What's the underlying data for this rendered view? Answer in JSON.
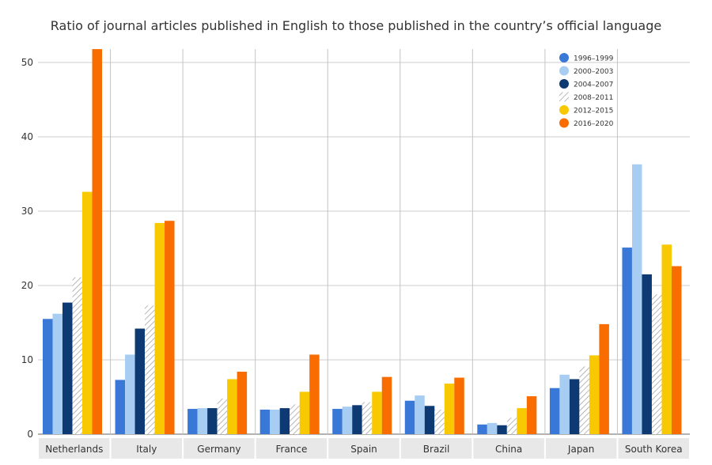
{
  "chart_data": {
    "type": "bar",
    "title": "Ratio of journal articles published in English to those published in the country’s official language",
    "xlabel": "",
    "ylabel": "",
    "ylim": [
      0,
      52
    ],
    "yticks": [
      0,
      10,
      20,
      30,
      40,
      50
    ],
    "grid": true,
    "legend_position": "top-right",
    "categories": [
      "Netherlands",
      "Italy",
      "Germany",
      "France",
      "Spain",
      "Brazil",
      "China",
      "Japan",
      "South Korea"
    ],
    "series": [
      {
        "name": "1996–1999",
        "color": "#3a78d8",
        "pattern": "solid",
        "values": [
          15.5,
          7.3,
          3.4,
          3.3,
          3.4,
          4.5,
          1.3,
          6.2,
          25.1
        ]
      },
      {
        "name": "2000–2003",
        "color": "#a8cdf2",
        "pattern": "solid",
        "values": [
          16.2,
          10.7,
          3.5,
          3.3,
          3.7,
          5.2,
          1.5,
          8.0,
          36.3
        ]
      },
      {
        "name": "2004–2007",
        "color": "#0e3a73",
        "pattern": "solid",
        "values": [
          17.7,
          14.2,
          3.5,
          3.5,
          3.9,
          3.8,
          1.2,
          7.4,
          21.5
        ]
      },
      {
        "name": "2008–2011",
        "color": "#9a9a9a",
        "pattern": "hatch",
        "values": [
          21.1,
          17.3,
          4.8,
          4.0,
          4.3,
          3.3,
          2.2,
          9.1,
          18.8
        ]
      },
      {
        "name": "2012–2015",
        "color": "#f8c800",
        "pattern": "solid",
        "values": [
          32.6,
          28.4,
          7.4,
          5.7,
          5.7,
          6.8,
          3.5,
          10.6,
          25.5
        ]
      },
      {
        "name": "2016–2020",
        "color": "#f86c00",
        "pattern": "solid",
        "values": [
          51.8,
          28.7,
          8.4,
          10.7,
          7.7,
          7.6,
          5.1,
          14.8,
          22.6
        ]
      }
    ]
  }
}
